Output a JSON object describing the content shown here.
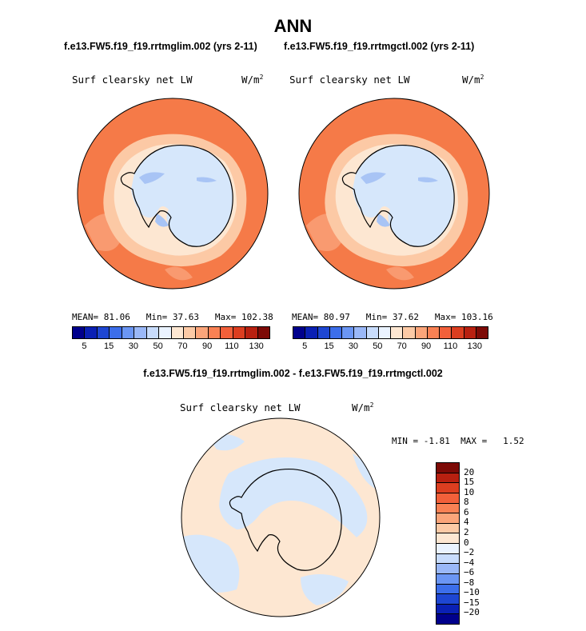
{
  "title": "ANN",
  "panels": [
    {
      "case": "f.e13.FW5.f19_f19.rrtmglim.002 (yrs 2-11)",
      "label": "Surf clearsky net LW",
      "units": "W/m",
      "units_exp": "2",
      "mean_label": "MEAN=",
      "mean": "81.06",
      "min_label": "Min=",
      "min": "37.63",
      "max_label": "Max=",
      "max": "102.38"
    },
    {
      "case": "f.e13.FW5.f19_f19.rrtmgctl.002 (yrs 2-11)",
      "label": "Surf clearsky net LW",
      "units": "W/m",
      "units_exp": "2",
      "mean_label": "MEAN=",
      "mean": "80.97",
      "min_label": "Min=",
      "min": "37.62",
      "max_label": "Max=",
      "max": "103.16"
    }
  ],
  "abs_colorbar": {
    "colors": [
      "#00008c",
      "#0a20b4",
      "#1e46d2",
      "#3c6eea",
      "#6b96f4",
      "#9ab8f8",
      "#c8dcfc",
      "#eaf3ff",
      "#fde7d2",
      "#fccaa6",
      "#fba57a",
      "#f98154",
      "#f2603a",
      "#dc3e20",
      "#b82010",
      "#7d0a06"
    ],
    "ticks": [
      "5",
      "15",
      "30",
      "50",
      "70",
      "90",
      "110",
      "130"
    ]
  },
  "diff": {
    "title": "f.e13.FW5.f19_f19.rrtmglim.002 - f.e13.FW5.f19_f19.rrtmgctl.002",
    "label": "Surf clearsky net LW",
    "units": "W/m",
    "units_exp": "2",
    "min_label": "MIN =",
    "min": "-1.81",
    "max_label": "MAX =",
    "max": "1.52"
  },
  "diff_colorbar": {
    "colors": [
      "#7d0a06",
      "#b82010",
      "#dc3e20",
      "#f2603a",
      "#f98154",
      "#fba57a",
      "#fccaa6",
      "#fde7d2",
      "#eaf3ff",
      "#c8dcfc",
      "#9ab8f8",
      "#6b96f4",
      "#3c6eea",
      "#1e46d2",
      "#0a20b4",
      "#00008c"
    ],
    "ticks": [
      "20",
      "15",
      "10",
      "8",
      "6",
      "4",
      "2",
      "0",
      "−2",
      "−4",
      "−6",
      "−8",
      "−10",
      "−15",
      "−20"
    ]
  },
  "map_colors": {
    "ocean_outer": "#f57a48",
    "ocean_mid": "#f99a70",
    "ice_ring": "#fcc9a5",
    "ice_inner": "#fde7d2",
    "continent": "#d6e7fb",
    "low_region": "#a8c4f5",
    "diff_pos": "#fde7d2",
    "diff_neg": "#d6e7fb"
  }
}
